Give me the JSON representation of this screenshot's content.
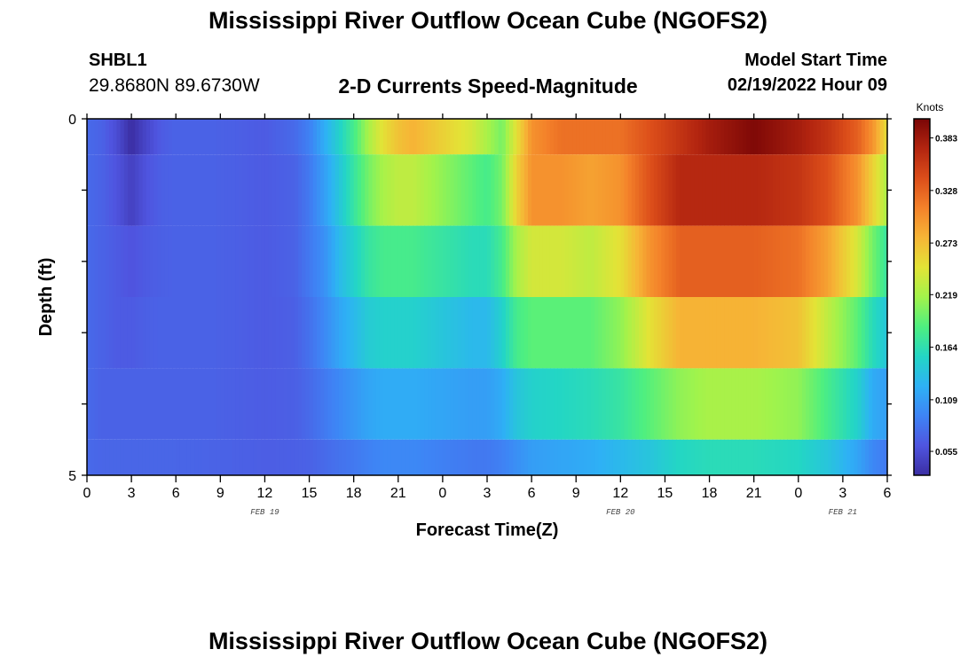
{
  "header": {
    "title": "Mississippi River Outflow Ocean Cube (NGOFS2)",
    "station_id": "SHBL1",
    "station_coords": "29.8680N  89.6730W",
    "subtitle": "2-D Currents Speed-Magnitude",
    "start_time_label": "Model Start Time",
    "start_time_value": "02/19/2022 Hour 09"
  },
  "footer": {
    "title": "Mississippi River Outflow Ocean Cube (NGOFS2)"
  },
  "chart_data": {
    "type": "heatmap",
    "xlabel": "Forecast Time(Z)",
    "ylabel": "Depth (ft)",
    "x_hours_range": [
      0,
      54
    ],
    "x_tick_labels": [
      "0",
      "3",
      "6",
      "9",
      "12",
      "15",
      "18",
      "21",
      "0",
      "3",
      "6",
      "9",
      "12",
      "15",
      "18",
      "21",
      "0",
      "3",
      "6"
    ],
    "date_labels": [
      {
        "label": "FEB 19",
        "hour": 12
      },
      {
        "label": "FEB 20",
        "hour": 36
      },
      {
        "label": "FEB 21",
        "hour": 51
      }
    ],
    "y_tick_labels": [
      "0",
      "5"
    ],
    "ylim": [
      0,
      5
    ],
    "colorbar": {
      "title": "Knots",
      "tick_labels": [
        "0.383",
        "0.328",
        "0.273",
        "0.219",
        "0.164",
        "0.109",
        "0.055"
      ],
      "tick_values": [
        0.383,
        0.328,
        0.273,
        0.219,
        0.164,
        0.109,
        0.055
      ],
      "range": [
        0.03,
        0.403
      ],
      "colors": [
        "#3b2ea3",
        "#4f55e0",
        "#3e84f5",
        "#2eb1f5",
        "#23d6c5",
        "#4eef80",
        "#a2f34b",
        "#e3e336",
        "#f6b536",
        "#f4822a",
        "#dc4e1a",
        "#b32510",
        "#7a0606"
      ]
    },
    "depth_levels": [
      {
        "depth_range": [
          0.0,
          0.5
        ],
        "hours": [
          0,
          1,
          2,
          3,
          4,
          5,
          6,
          8,
          10,
          12,
          14,
          15,
          16,
          17,
          18,
          19,
          20,
          21,
          22,
          24,
          26,
          27,
          28,
          29,
          30,
          32,
          34,
          36,
          38,
          40,
          42,
          45,
          48,
          50,
          52,
          53,
          54
        ],
        "values": [
          0.075,
          0.07,
          0.055,
          0.03,
          0.05,
          0.065,
          0.07,
          0.07,
          0.068,
          0.065,
          0.075,
          0.09,
          0.12,
          0.15,
          0.18,
          0.22,
          0.25,
          0.27,
          0.28,
          0.26,
          0.24,
          0.22,
          0.2,
          0.25,
          0.3,
          0.32,
          0.32,
          0.32,
          0.34,
          0.36,
          0.38,
          0.4,
          0.38,
          0.36,
          0.33,
          0.3,
          0.25
        ]
      },
      {
        "depth_range": [
          0.5,
          1.5
        ],
        "hours": [
          0,
          1,
          2,
          3,
          4,
          5,
          6,
          8,
          10,
          12,
          14,
          15,
          16,
          17,
          18,
          19,
          20,
          21,
          22,
          24,
          26,
          27,
          28,
          29,
          30,
          32,
          34,
          36,
          38,
          40,
          42,
          45,
          48,
          50,
          52,
          53,
          54
        ],
        "values": [
          0.075,
          0.07,
          0.06,
          0.045,
          0.06,
          0.068,
          0.07,
          0.07,
          0.068,
          0.065,
          0.07,
          0.085,
          0.11,
          0.14,
          0.17,
          0.2,
          0.22,
          0.23,
          0.23,
          0.21,
          0.19,
          0.18,
          0.2,
          0.26,
          0.3,
          0.3,
          0.29,
          0.3,
          0.34,
          0.37,
          0.37,
          0.37,
          0.36,
          0.34,
          0.3,
          0.26,
          0.22
        ]
      },
      {
        "depth_range": [
          1.5,
          2.5
        ],
        "hours": [
          0,
          1,
          2,
          3,
          4,
          5,
          6,
          8,
          10,
          12,
          14,
          15,
          16,
          17,
          18,
          19,
          20,
          21,
          22,
          24,
          26,
          27,
          28,
          29,
          30,
          32,
          34,
          36,
          38,
          40,
          42,
          45,
          48,
          50,
          52,
          53,
          54
        ],
        "values": [
          0.075,
          0.07,
          0.065,
          0.06,
          0.065,
          0.068,
          0.07,
          0.07,
          0.068,
          0.065,
          0.07,
          0.085,
          0.1,
          0.13,
          0.15,
          0.17,
          0.18,
          0.18,
          0.18,
          0.17,
          0.16,
          0.16,
          0.18,
          0.22,
          0.24,
          0.24,
          0.23,
          0.25,
          0.3,
          0.33,
          0.33,
          0.33,
          0.32,
          0.29,
          0.24,
          0.2,
          0.17
        ]
      },
      {
        "depth_range": [
          2.5,
          3.5
        ],
        "hours": [
          0,
          1,
          2,
          3,
          4,
          5,
          6,
          8,
          10,
          12,
          14,
          15,
          16,
          17,
          18,
          19,
          20,
          21,
          22,
          24,
          26,
          27,
          28,
          29,
          30,
          32,
          34,
          36,
          38,
          40,
          42,
          45,
          48,
          50,
          52,
          53,
          54
        ],
        "values": [
          0.075,
          0.07,
          0.065,
          0.065,
          0.068,
          0.07,
          0.07,
          0.07,
          0.068,
          0.065,
          0.068,
          0.08,
          0.095,
          0.115,
          0.13,
          0.145,
          0.15,
          0.15,
          0.15,
          0.14,
          0.13,
          0.13,
          0.15,
          0.18,
          0.19,
          0.19,
          0.19,
          0.21,
          0.25,
          0.28,
          0.28,
          0.28,
          0.27,
          0.23,
          0.19,
          0.16,
          0.14
        ]
      },
      {
        "depth_range": [
          3.5,
          4.5
        ],
        "hours": [
          0,
          1,
          2,
          3,
          4,
          5,
          6,
          8,
          10,
          12,
          14,
          15,
          16,
          17,
          18,
          19,
          20,
          21,
          22,
          24,
          26,
          27,
          28,
          29,
          30,
          32,
          34,
          36,
          38,
          40,
          42,
          45,
          48,
          50,
          52,
          53,
          54
        ],
        "values": [
          0.075,
          0.07,
          0.07,
          0.07,
          0.07,
          0.07,
          0.07,
          0.07,
          0.068,
          0.066,
          0.068,
          0.075,
          0.085,
          0.095,
          0.105,
          0.115,
          0.12,
          0.12,
          0.12,
          0.115,
          0.11,
          0.11,
          0.12,
          0.14,
          0.15,
          0.155,
          0.16,
          0.17,
          0.19,
          0.21,
          0.22,
          0.22,
          0.21,
          0.18,
          0.15,
          0.12,
          0.11
        ]
      },
      {
        "depth_range": [
          4.5,
          5.0
        ],
        "hours": [
          0,
          1,
          2,
          3,
          4,
          5,
          6,
          8,
          10,
          12,
          14,
          15,
          16,
          17,
          18,
          19,
          20,
          21,
          22,
          24,
          26,
          27,
          28,
          29,
          30,
          32,
          34,
          36,
          38,
          40,
          42,
          45,
          48,
          50,
          52,
          53,
          54
        ],
        "values": [
          0.075,
          0.072,
          0.072,
          0.072,
          0.072,
          0.072,
          0.072,
          0.071,
          0.069,
          0.067,
          0.068,
          0.07,
          0.075,
          0.08,
          0.085,
          0.09,
          0.095,
          0.095,
          0.095,
          0.09,
          0.085,
          0.085,
          0.09,
          0.1,
          0.11,
          0.115,
          0.12,
          0.13,
          0.14,
          0.155,
          0.16,
          0.16,
          0.155,
          0.14,
          0.115,
          0.095,
          0.085
        ]
      }
    ]
  }
}
